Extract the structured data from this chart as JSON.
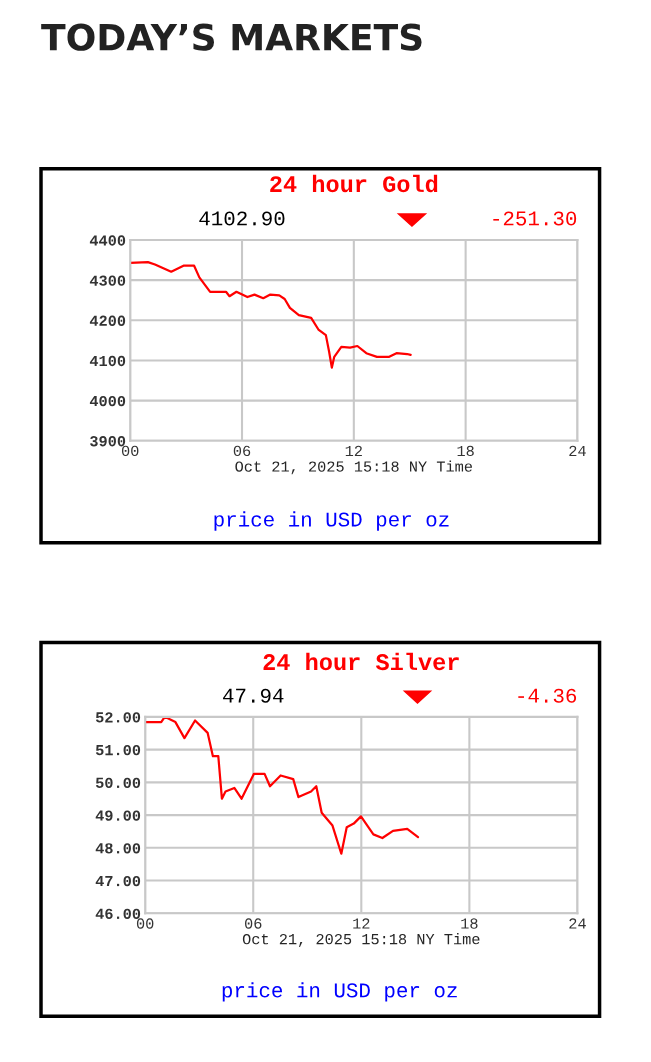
{
  "chart_data": [
    {
      "type": "line",
      "title": "TODAY’S MARKETS",
      "subtitle": "24 hour Gold",
      "xlabel": "Oct 21, 2025 15:18 NY Time",
      "annotations": [
        "4102.90",
        "-251.30",
        "price in USD per oz"
      ],
      "xlim": [
        0,
        24
      ],
      "xticks": [
        {
          "value": 0,
          "label": "00"
        },
        {
          "value": 6,
          "label": "06"
        },
        {
          "value": 12,
          "label": "12"
        },
        {
          "value": 18,
          "label": "18"
        },
        {
          "value": 24,
          "label": "24"
        }
      ],
      "ylim": [
        3900,
        4400
      ],
      "yticks": [
        3900,
        4000,
        4100,
        4200,
        4300,
        4400
      ],
      "grid": true,
      "series": [
        {
          "color": "#ff0000",
          "x": [
            0,
            0.95,
            1.33,
            2.2,
            2.86,
            3.43,
            3.71,
            4.29,
            5.14,
            5.33,
            5.7,
            6.29,
            6.67,
            7.14,
            7.52,
            8.0,
            8.29,
            8.57,
            9.05,
            9.71,
            10.1,
            10.5,
            10.67,
            10.82,
            10.95,
            11.33,
            11.8,
            12.19,
            12.67,
            13.24,
            13.9,
            14.29,
            14.86,
            15.05
          ],
          "values": [
            4343,
            4345,
            4339,
            4321,
            4336,
            4336,
            4307,
            4271,
            4271,
            4260,
            4271,
            4258,
            4264,
            4255,
            4264,
            4262,
            4253,
            4231,
            4213,
            4206,
            4177,
            4163,
            4123,
            4082,
            4109,
            4134,
            4132,
            4136,
            4118,
            4109,
            4109,
            4118,
            4116,
            4114
          ]
        }
      ]
    },
    {
      "type": "line",
      "title": "24 hour Silver",
      "xlabel": "Oct 21, 2025 15:18 NY Time",
      "annotations": [
        "47.94",
        "-4.36",
        "price in USD per oz"
      ],
      "xlim": [
        0,
        24
      ],
      "xticks": [
        {
          "value": 0,
          "label": "00"
        },
        {
          "value": 6,
          "label": "06"
        },
        {
          "value": 12,
          "label": "12"
        },
        {
          "value": 18,
          "label": "18"
        },
        {
          "value": 24,
          "label": "24"
        }
      ],
      "ylim": [
        46,
        52
      ],
      "yticks": [
        {
          "value": 46,
          "label": "46.00"
        },
        {
          "value": 47,
          "label": "47.00"
        },
        {
          "value": 48,
          "label": "48.00"
        },
        {
          "value": 49,
          "label": "49.00"
        },
        {
          "value": 50,
          "label": "50.00"
        },
        {
          "value": 51,
          "label": "51.00"
        },
        {
          "value": 52,
          "label": "52.00"
        }
      ],
      "grid": true,
      "series": [
        {
          "color": "#ff0000",
          "x": [
            0,
            0.89,
            1.09,
            1.68,
            2.18,
            2.77,
            3.47,
            3.76,
            4.06,
            4.26,
            4.46,
            4.95,
            5.35,
            6.04,
            6.63,
            6.93,
            7.52,
            8.22,
            8.51,
            9.21,
            9.5,
            9.8,
            10.4,
            10.89,
            11.19,
            11.58,
            11.98,
            12.67,
            13.17,
            13.76,
            14.55,
            15.15
          ],
          "values": [
            51.84,
            51.84,
            52.0,
            51.84,
            51.35,
            51.89,
            51.51,
            50.8,
            50.8,
            49.5,
            49.72,
            49.83,
            49.5,
            50.26,
            50.26,
            49.88,
            50.21,
            50.1,
            49.55,
            49.72,
            49.88,
            49.07,
            48.68,
            47.82,
            48.63,
            48.74,
            48.96,
            48.41,
            48.3,
            48.52,
            48.58,
            48.33
          ]
        }
      ]
    }
  ]
}
